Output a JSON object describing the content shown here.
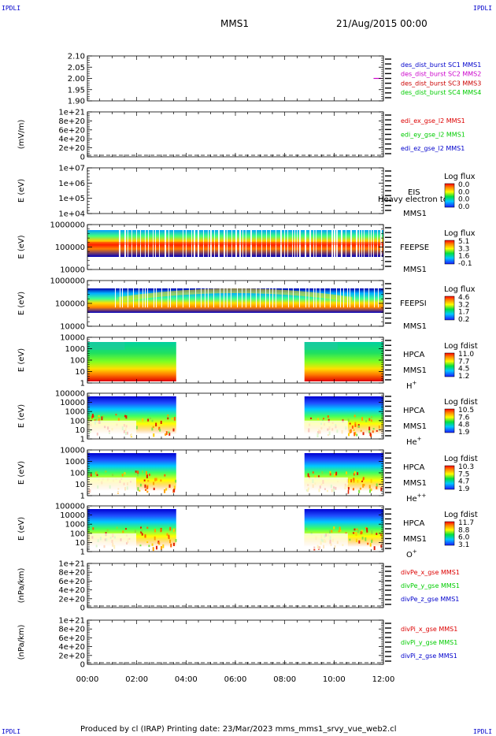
{
  "header": {
    "corner_tl": "IPDLI",
    "corner_tr": "IPDLI",
    "corner_bl": "IPDLI",
    "corner_br": "IPDLI",
    "spacecraft": "MMS1",
    "date_time": "21/Aug/2015 00:00"
  },
  "footer": {
    "text": "Produced by cl (IRAP)   Printing date: 23/Mar/2023   mms_mms1_srvy_vue_web2.cl"
  },
  "x_axis": {
    "ticks": [
      "00:00",
      "02:00",
      "04:00",
      "06:00",
      "08:00",
      "10:00",
      "12:00"
    ],
    "range_hours": [
      0,
      12
    ]
  },
  "colors": {
    "mms1": "#0000cc",
    "mms2": "#cc00cc",
    "mms3": "#cc0000",
    "mms4": "#00cc00",
    "x_comp": "#dd0000",
    "y_comp": "#00cc00",
    "z_comp": "#0000cc"
  },
  "chart_data": [
    {
      "id": "orbit",
      "type": "line",
      "ylabel": "",
      "yticks": [
        "2.10",
        "2.05",
        "2.00",
        "1.95",
        "1.90"
      ],
      "ylim": [
        1.9,
        2.1
      ],
      "legend": [
        {
          "name": "des_dist_burst SC1 MMS1",
          "color": "#0000cc"
        },
        {
          "name": "des_dist_burst SC2 MMS2",
          "color": "#cc00cc"
        },
        {
          "name": "des_dist_burst SC3 MMS3",
          "color": "#cc0000"
        },
        {
          "name": "des_dist_burst SC4 MMS4",
          "color": "#00cc00"
        }
      ],
      "series": [
        {
          "name": "des_dist_burst SC2 MMS2",
          "x": [
            11.6,
            11.95
          ],
          "values": [
            2.0,
            2.0
          ],
          "color": "#cc00cc"
        }
      ]
    },
    {
      "id": "efield",
      "type": "line",
      "ylabel": "(mV/m)",
      "yticks": [
        "1e+21",
        "8e+20",
        "6e+20",
        "4e+20",
        "2e+20",
        "0"
      ],
      "ylim": [
        0,
        1e+21
      ],
      "legend": [
        {
          "name": "edi_ex_gse_l2 MMS1",
          "color": "#dd0000"
        },
        {
          "name": "edi_ey_gse_l2 MMS1",
          "color": "#00cc00"
        },
        {
          "name": "edi_ez_gse_l2 MMS1",
          "color": "#0000cc"
        }
      ],
      "zero_line": true
    },
    {
      "id": "eis",
      "type": "heatmap",
      "ylabel": "E (eV)",
      "yticks": [
        "1e+07",
        "1e+06",
        "1e+05",
        "1e+04"
      ],
      "instrument": [
        "EIS",
        "MMS1"
      ],
      "overlay_label": "Heavy electron tof",
      "colorbar": {
        "title": "Log flux",
        "values": [
          "0.0",
          "0.0",
          "0.0",
          "0.0"
        ]
      },
      "has_data": false
    },
    {
      "id": "feepse",
      "type": "heatmap",
      "ylabel": "E (eV)",
      "yticks": [
        "1000000",
        "100000",
        "10000"
      ],
      "instrument": [
        "FEEPSE",
        "MMS1"
      ],
      "colorbar": {
        "title": "Log flux",
        "values": [
          "5.1",
          "3.3",
          "1.6",
          "-0.1"
        ]
      },
      "coverage": [
        [
          0,
          12
        ]
      ]
    },
    {
      "id": "feepsi",
      "type": "heatmap",
      "ylabel": "E (eV)",
      "yticks": [
        "1000000",
        "100000",
        "10000"
      ],
      "instrument": [
        "FEEPSI",
        "MMS1"
      ],
      "colorbar": {
        "title": "Log flux",
        "values": [
          "4.6",
          "3.2",
          "1.7",
          "0.2"
        ]
      },
      "coverage": [
        [
          0,
          12
        ]
      ]
    },
    {
      "id": "hpca-h",
      "type": "heatmap",
      "ylabel": "E (eV)",
      "yticks": [
        "10000",
        "1000",
        "100",
        "10",
        "1"
      ],
      "instrument": [
        "HPCA",
        "MMS1"
      ],
      "species": "H",
      "charge": "+",
      "colorbar": {
        "title": "Log fdist",
        "values": [
          "11.0",
          "7.7",
          "4.5",
          "1.2"
        ]
      },
      "coverage": [
        [
          0,
          3.6
        ],
        [
          8.8,
          12
        ]
      ]
    },
    {
      "id": "hpca-he",
      "type": "heatmap",
      "ylabel": "E (eV)",
      "yticks": [
        "100000",
        "10000",
        "1000",
        "100",
        "10",
        "1"
      ],
      "instrument": [
        "HPCA",
        "MMS1"
      ],
      "species": "He",
      "charge": "+",
      "colorbar": {
        "title": "Log fdist",
        "values": [
          "10.5",
          "7.6",
          "4.8",
          "1.9"
        ]
      },
      "coverage": [
        [
          0,
          3.6
        ],
        [
          8.8,
          12
        ]
      ]
    },
    {
      "id": "hpca-hepp",
      "type": "heatmap",
      "ylabel": "E (eV)",
      "yticks": [
        "10000",
        "1000",
        "100",
        "10",
        "1"
      ],
      "instrument": [
        "HPCA",
        "MMS1"
      ],
      "species": "He",
      "charge": "++",
      "colorbar": {
        "title": "Log fdist",
        "values": [
          "10.3",
          "7.5",
          "4.7",
          "1.9"
        ]
      },
      "coverage": [
        [
          0,
          3.6
        ],
        [
          8.8,
          12
        ]
      ]
    },
    {
      "id": "hpca-o",
      "type": "heatmap",
      "ylabel": "E (eV)",
      "yticks": [
        "100000",
        "10000",
        "1000",
        "100",
        "10",
        "1"
      ],
      "instrument": [
        "HPCA",
        "MMS1"
      ],
      "species": "O",
      "charge": "+",
      "colorbar": {
        "title": "Log fdist",
        "values": [
          "11.7",
          "8.8",
          "6.0",
          "3.1"
        ]
      },
      "coverage": [
        [
          0,
          3.6
        ],
        [
          8.8,
          12
        ]
      ]
    },
    {
      "id": "divpe",
      "type": "line",
      "ylabel": "(nPa/km)",
      "yticks": [
        "1e+21",
        "8e+20",
        "6e+20",
        "4e+20",
        "2e+20",
        "0"
      ],
      "ylim": [
        0,
        1e+21
      ],
      "legend": [
        {
          "name": "divPe_x_gse MMS1",
          "color": "#dd0000"
        },
        {
          "name": "divPe_y_gse MMS1",
          "color": "#00cc00"
        },
        {
          "name": "divPe_z_gse MMS1",
          "color": "#0000cc"
        }
      ],
      "zero_line": true
    },
    {
      "id": "divpi",
      "type": "line",
      "ylabel": "(nPa/km)",
      "yticks": [
        "1e+21",
        "8e+20",
        "6e+20",
        "4e+20",
        "2e+20",
        "0"
      ],
      "ylim": [
        0,
        1e+21
      ],
      "legend": [
        {
          "name": "divPi_x_gse MMS1",
          "color": "#dd0000"
        },
        {
          "name": "divPi_y_gse MMS1",
          "color": "#00cc00"
        },
        {
          "name": "divPi_z_gse MMS1",
          "color": "#0000cc"
        }
      ],
      "zero_line": true
    }
  ]
}
